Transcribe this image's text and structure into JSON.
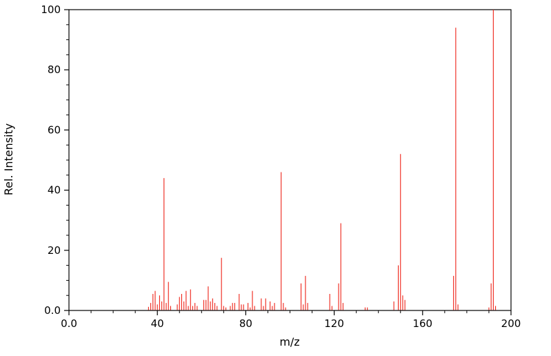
{
  "figure": {
    "background_color": "#ffffff",
    "frame_color": "#000000"
  },
  "chart_data": {
    "type": "bar",
    "subtype": "stem-mass-spectrum",
    "title": "",
    "xlabel": "m/z",
    "ylabel": "Rel. Intensity",
    "xlim": [
      0,
      200
    ],
    "ylim": [
      0,
      100
    ],
    "x_ticks": [
      0,
      40,
      80,
      120,
      160,
      200
    ],
    "x_tick_labels": [
      "0.0",
      "40",
      "80",
      "120",
      "160",
      "200"
    ],
    "x_minor_step": 10,
    "y_ticks": [
      0,
      20,
      40,
      60,
      80,
      100
    ],
    "y_tick_labels": [
      "0.0",
      "20",
      "40",
      "60",
      "80",
      "100"
    ],
    "y_minor_step": 5,
    "grid": false,
    "legend": false,
    "peak_color": "#ee2116",
    "peaks": [
      [
        36,
        1.2
      ],
      [
        37,
        2.5
      ],
      [
        38,
        5.5
      ],
      [
        39,
        6.5
      ],
      [
        40,
        2
      ],
      [
        41,
        5
      ],
      [
        42,
        3
      ],
      [
        43,
        44
      ],
      [
        44,
        2.5
      ],
      [
        45,
        9.5
      ],
      [
        46,
        1.5
      ],
      [
        49,
        2
      ],
      [
        50,
        4.5
      ],
      [
        51,
        5.5
      ],
      [
        52,
        3
      ],
      [
        53,
        6.5
      ],
      [
        54,
        1.5
      ],
      [
        55,
        7
      ],
      [
        56,
        1.5
      ],
      [
        57,
        2.5
      ],
      [
        58,
        1.5
      ],
      [
        61,
        3.5
      ],
      [
        62,
        3.5
      ],
      [
        63,
        8
      ],
      [
        64,
        3
      ],
      [
        65,
        4
      ],
      [
        66,
        2.5
      ],
      [
        67,
        1.5
      ],
      [
        69,
        17.5
      ],
      [
        70,
        1.5
      ],
      [
        71,
        1
      ],
      [
        73,
        1.5
      ],
      [
        74,
        2.5
      ],
      [
        75,
        2.5
      ],
      [
        77,
        5.5
      ],
      [
        78,
        2
      ],
      [
        79,
        2
      ],
      [
        81,
        2.5
      ],
      [
        82,
        1
      ],
      [
        83,
        6.5
      ],
      [
        84,
        1.5
      ],
      [
        87,
        4
      ],
      [
        88,
        1.5
      ],
      [
        89,
        4
      ],
      [
        91,
        3
      ],
      [
        92,
        1.5
      ],
      [
        93,
        2.5
      ],
      [
        96,
        46
      ],
      [
        97,
        2.5
      ],
      [
        98,
        1
      ],
      [
        105,
        9
      ],
      [
        106,
        2
      ],
      [
        107,
        11.5
      ],
      [
        108,
        2.5
      ],
      [
        118,
        5.5
      ],
      [
        119,
        1.5
      ],
      [
        122,
        9
      ],
      [
        123,
        29
      ],
      [
        124,
        2.5
      ],
      [
        134,
        1
      ],
      [
        135,
        1
      ],
      [
        147,
        3
      ],
      [
        149,
        15
      ],
      [
        150,
        52
      ],
      [
        151,
        5
      ],
      [
        152,
        3.5
      ],
      [
        174,
        11.5
      ],
      [
        175,
        94
      ],
      [
        176,
        2
      ],
      [
        190,
        1
      ],
      [
        191,
        9
      ],
      [
        192,
        100
      ],
      [
        193,
        1.5
      ]
    ]
  }
}
